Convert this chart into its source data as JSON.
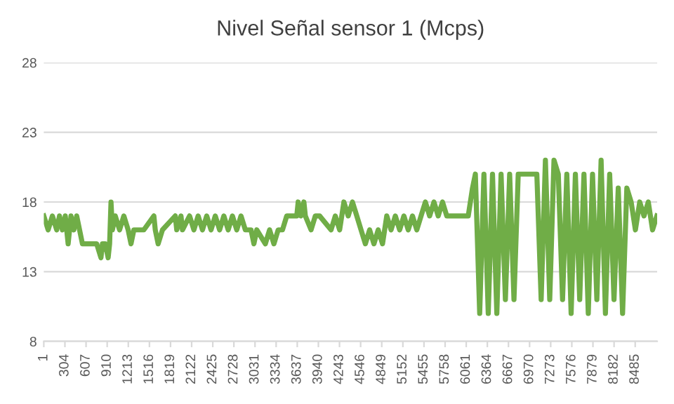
{
  "chart_data": {
    "type": "line",
    "title": "Nivel Señal sensor 1 (Mcps)",
    "x": [
      1,
      63,
      124,
      186,
      226,
      268,
      309,
      350,
      391,
      432,
      473,
      514,
      555,
      616,
      760,
      821,
      842,
      883,
      924,
      945,
      965,
      985,
      1026,
      1088,
      1149,
      1211,
      1252,
      1293,
      1436,
      1580,
      1600,
      1641,
      1703,
      1887,
      1908,
      1969,
      1990,
      2092,
      2154,
      2215,
      2277,
      2338,
      2400,
      2461,
      2523,
      2584,
      2646,
      2707,
      2769,
      2830,
      2892,
      2974,
      3015,
      3056,
      3179,
      3240,
      3302,
      3363,
      3425,
      3486,
      3630,
      3650,
      3691,
      3732,
      3753,
      3835,
      3896,
      3958,
      4122,
      4183,
      4245,
      4306,
      4368,
      4429,
      4491,
      4552,
      4614,
      4675,
      4737,
      4798,
      4860,
      4921,
      4983,
      5044,
      5106,
      5167,
      5229,
      5290,
      5352,
      5413,
      5475,
      5536,
      5598,
      5659,
      5721,
      5782,
      5844,
      6090,
      6151,
      6192,
      6254,
      6315,
      6377,
      6438,
      6500,
      6561,
      6623,
      6684,
      6746,
      6807,
      6869,
      7074,
      7136,
      7197,
      7259,
      7320,
      7382,
      7443,
      7504,
      7566,
      7627,
      7689,
      7750,
      7812,
      7873,
      7935,
      7996,
      8058,
      8119,
      8181,
      8242,
      8304,
      8365,
      8427,
      8488,
      8550,
      8611,
      8673,
      8734,
      8796
    ],
    "series": [
      {
        "color": "#70ad47",
        "values": [
          17,
          16,
          17,
          16,
          17,
          16,
          17,
          15,
          17,
          16,
          17,
          16,
          15,
          15,
          15,
          14,
          15,
          15,
          14,
          15,
          18,
          16,
          17,
          16,
          17,
          16,
          15,
          16,
          16,
          17,
          16,
          15,
          16,
          17,
          16,
          17,
          16,
          17,
          16,
          17,
          16,
          17,
          16,
          17,
          16,
          17,
          16,
          17,
          16,
          17,
          16,
          16,
          15,
          16,
          15,
          16,
          15,
          16,
          16,
          17,
          17,
          18,
          17,
          18,
          17,
          16,
          17,
          17,
          16,
          17,
          16,
          18,
          17,
          18,
          17,
          16,
          15,
          16,
          15,
          16,
          15,
          17,
          16,
          17,
          16,
          17,
          16,
          17,
          16,
          17,
          18,
          17,
          18,
          17,
          18,
          17,
          17,
          17,
          19,
          20,
          10,
          20,
          10,
          20,
          10,
          20,
          11,
          20,
          11,
          20,
          20,
          20,
          11,
          21,
          11,
          21,
          20,
          11,
          20,
          10,
          20,
          11,
          20,
          10,
          20,
          11,
          21,
          10,
          20,
          11,
          19,
          10,
          19,
          18,
          16,
          18,
          17,
          18,
          16,
          17
        ]
      }
    ],
    "xlim": [
      1,
      8800
    ],
    "xticks": [
      1,
      304,
      607,
      910,
      1213,
      1516,
      1819,
      2122,
      2425,
      2728,
      3031,
      3334,
      3637,
      3940,
      4243,
      4546,
      4849,
      5152,
      5455,
      5758,
      6061,
      6364,
      6667,
      6970,
      7273,
      7576,
      7879,
      8182,
      8485
    ],
    "ylim": [
      8,
      28
    ],
    "yticks": [
      8,
      13,
      18,
      23,
      28
    ],
    "grid": "y",
    "line_style": "solid",
    "legend": false
  }
}
